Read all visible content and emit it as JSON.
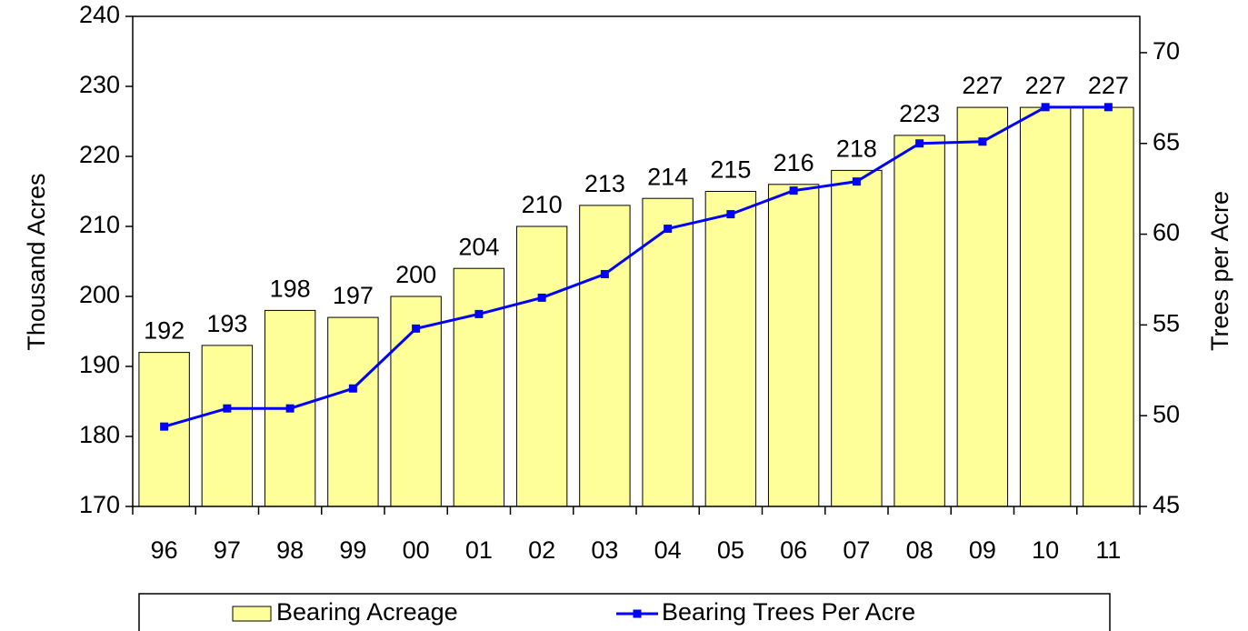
{
  "chart_data": {
    "type": "bar_line",
    "ylabel": "Thousand Acres",
    "y2label": "Trees per Acre",
    "categories": [
      "96",
      "97",
      "98",
      "99",
      "00",
      "01",
      "02",
      "03",
      "04",
      "05",
      "06",
      "07",
      "08",
      "09",
      "10",
      "11"
    ],
    "series": [
      {
        "name": "Bearing Acreage",
        "type": "bar",
        "color": "#ffff99",
        "values": [
          192,
          193,
          198,
          197,
          200,
          204,
          210,
          213,
          214,
          215,
          216,
          218,
          223,
          227,
          227,
          227
        ]
      },
      {
        "name": "Bearing Trees Per Acre",
        "type": "line",
        "axis": "y2",
        "color": "#0000ff",
        "values": [
          49.4,
          50.4,
          50.4,
          51.5,
          54.8,
          55.6,
          56.5,
          57.8,
          60.3,
          61.1,
          62.4,
          62.9,
          65.0,
          65.1,
          67.0,
          67.0
        ]
      }
    ],
    "ylim": [
      170,
      240
    ],
    "yticks": [
      170,
      180,
      190,
      200,
      210,
      220,
      230,
      240
    ],
    "y2lim": [
      45,
      72
    ],
    "y2ticks": [
      45,
      50,
      55,
      60,
      65,
      70
    ],
    "legend": "bottom"
  }
}
